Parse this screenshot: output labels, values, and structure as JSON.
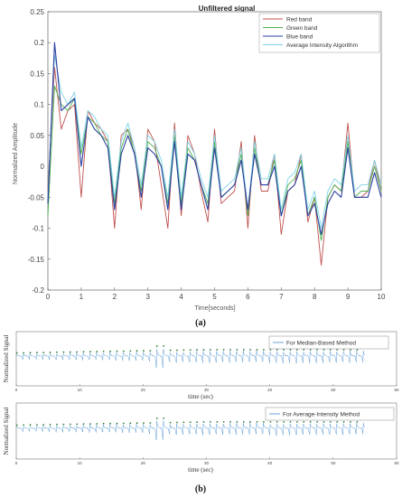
{
  "chart_data": [
    {
      "type": "line",
      "title": "Unfiltered signal",
      "xlabel": "Time[seconds]",
      "ylabel": "Normalized Amplitude",
      "xlim": [
        0,
        10
      ],
      "ylim": [
        -0.2,
        0.25
      ],
      "xticks": [
        "0",
        "1",
        "2",
        "3",
        "4",
        "5",
        "6",
        "7",
        "8",
        "9",
        "10"
      ],
      "yticks": [
        "-0.2",
        "-0.15",
        "-0.1",
        "-0.05",
        "0",
        "0.05",
        "0.1",
        "0.15",
        "0.2",
        "0.25"
      ],
      "grid": false,
      "legend_position": "top-right",
      "x": [
        0,
        0.2,
        0.4,
        0.6,
        0.8,
        1.0,
        1.2,
        1.4,
        1.6,
        1.8,
        2.0,
        2.2,
        2.4,
        2.6,
        2.8,
        3.0,
        3.2,
        3.4,
        3.6,
        3.8,
        4.0,
        4.2,
        4.4,
        4.6,
        4.8,
        5.0,
        5.2,
        5.4,
        5.6,
        5.8,
        6.0,
        6.2,
        6.4,
        6.6,
        6.8,
        7.0,
        7.2,
        7.4,
        7.6,
        7.8,
        8.0,
        8.2,
        8.4,
        8.6,
        8.8,
        9.0,
        9.2,
        9.4,
        9.6,
        9.8,
        10.0
      ],
      "series": [
        {
          "name": "Red band",
          "color": "#c0504d",
          "values": [
            -0.04,
            0.16,
            0.06,
            0.09,
            0.1,
            -0.05,
            0.09,
            0.07,
            0.06,
            0.04,
            -0.1,
            0.05,
            0.06,
            0.03,
            -0.07,
            0.06,
            0.04,
            -0.03,
            -0.1,
            0.07,
            -0.08,
            0.05,
            0.02,
            -0.04,
            -0.09,
            0.06,
            -0.06,
            -0.05,
            -0.04,
            0.04,
            -0.1,
            0.05,
            -0.04,
            -0.04,
            0.02,
            -0.11,
            -0.04,
            -0.03,
            0.02,
            -0.09,
            -0.05,
            -0.16,
            -0.05,
            -0.03,
            -0.04,
            0.07,
            -0.05,
            -0.05,
            -0.04,
            0.01,
            -0.04
          ]
        },
        {
          "name": "Green band",
          "color": "#4caf50",
          "values": [
            -0.08,
            0.13,
            0.1,
            0.09,
            0.11,
            0.02,
            0.08,
            0.07,
            0.05,
            0.04,
            -0.06,
            0.03,
            0.06,
            0.02,
            -0.04,
            0.04,
            0.03,
            0.0,
            -0.06,
            0.05,
            -0.06,
            0.03,
            0.01,
            -0.03,
            -0.06,
            0.04,
            -0.05,
            -0.04,
            -0.03,
            0.02,
            -0.08,
            0.03,
            -0.03,
            -0.03,
            0.01,
            -0.08,
            -0.03,
            -0.02,
            0.01,
            -0.08,
            -0.05,
            -0.12,
            -0.05,
            -0.03,
            -0.04,
            0.04,
            -0.05,
            -0.04,
            -0.04,
            0.0,
            -0.04
          ]
        },
        {
          "name": "Blue band",
          "color": "#2b3fa0",
          "values": [
            -0.06,
            0.2,
            0.09,
            0.1,
            0.11,
            0.0,
            0.08,
            0.06,
            0.05,
            0.03,
            -0.07,
            0.02,
            0.05,
            0.02,
            -0.05,
            0.03,
            0.02,
            0.0,
            -0.07,
            0.04,
            -0.07,
            0.02,
            0.01,
            -0.03,
            -0.07,
            0.03,
            -0.05,
            -0.04,
            -0.03,
            0.01,
            -0.07,
            0.02,
            -0.03,
            -0.03,
            0.0,
            -0.08,
            -0.04,
            -0.03,
            0.0,
            -0.08,
            -0.06,
            -0.11,
            -0.06,
            -0.04,
            -0.05,
            0.03,
            -0.05,
            -0.05,
            -0.05,
            -0.01,
            -0.05
          ]
        },
        {
          "name": "Average Intensity Algorithm",
          "color": "#7fd4e6",
          "values": [
            -0.05,
            0.18,
            0.12,
            0.1,
            0.12,
            0.03,
            0.09,
            0.08,
            0.06,
            0.05,
            -0.05,
            0.04,
            0.07,
            0.03,
            -0.03,
            0.05,
            0.04,
            0.01,
            -0.05,
            0.06,
            -0.05,
            0.04,
            0.02,
            -0.02,
            -0.05,
            0.05,
            -0.04,
            -0.03,
            -0.02,
            0.03,
            -0.07,
            0.04,
            -0.02,
            -0.02,
            0.02,
            -0.07,
            -0.02,
            -0.01,
            0.02,
            -0.07,
            -0.04,
            -0.1,
            -0.04,
            -0.02,
            -0.03,
            0.05,
            -0.04,
            -0.03,
            -0.03,
            0.01,
            -0.03
          ]
        }
      ]
    },
    {
      "type": "line",
      "title": "",
      "xlabel": "time (sec)",
      "ylabel": "Normalized Signal",
      "xlim": [
        0,
        60
      ],
      "xticks": [
        "0",
        "10",
        "20",
        "30",
        "40",
        "50",
        "60"
      ],
      "legend_position": "top-right",
      "series": [
        {
          "name": "For Median-Based Method",
          "color": "#5b9bd5",
          "peak_marker_color": "#2e7d32"
        }
      ]
    },
    {
      "type": "line",
      "title": "",
      "xlabel": "time (sec)",
      "ylabel": "Normalized Signal",
      "xlim": [
        0,
        60
      ],
      "xticks": [
        "0",
        "10",
        "20",
        "30",
        "40",
        "50",
        "60"
      ],
      "legend_position": "top-right",
      "series": [
        {
          "name": "For Average-Intensity Method",
          "color": "#5b9bd5",
          "peak_marker_color": "#2e7d32"
        }
      ]
    }
  ],
  "captions": {
    "a": "(a)",
    "b": "(b)"
  }
}
